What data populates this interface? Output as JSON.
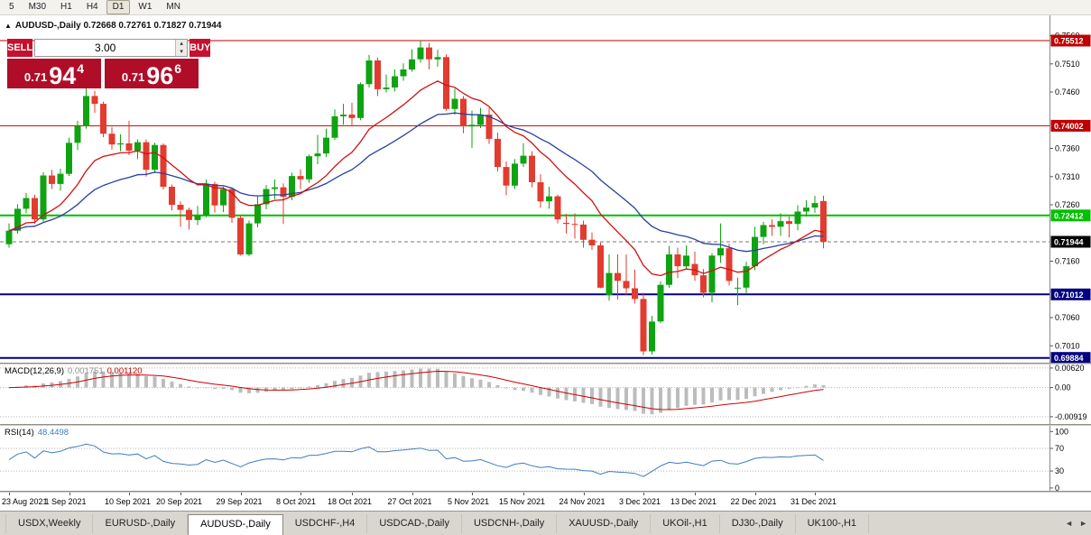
{
  "toolbar": {
    "timeframes": [
      "5",
      "M30",
      "H1",
      "H4",
      "D1",
      "W1",
      "MN"
    ],
    "active": "D1"
  },
  "icons": {
    "collapse": "▲",
    "volume_up": "▴",
    "volume_down": "▾",
    "tab_scroll_left": "◄",
    "tab_scroll_right": "►"
  },
  "chart": {
    "title": {
      "text": "AUDUSD-,Daily 0.72668 0.72761 0.71827 0.71944"
    },
    "trade_panel": {
      "sell_label": "SELL",
      "buy_label": "BUY",
      "volume": "3.00",
      "sell_price": {
        "prefix": "0.71",
        "big": "94",
        "sup": "4"
      },
      "buy_price": {
        "prefix": "0.71",
        "big": "96",
        "sup": "6"
      }
    }
  },
  "tabs": {
    "items": [
      "USDX,Weekly",
      "EURUSD-,Daily",
      "AUDUSD-,Daily",
      "USDCHF-,H4",
      "USDCAD-,Daily",
      "USDCNH-,Daily",
      "XAUUSD-,Daily",
      "UKOil-,H1",
      "DJ30-,Daily",
      "UK100-,H1"
    ],
    "active": "AUDUSD-,Daily"
  },
  "chart_data": {
    "type": "candlestick",
    "symbol": "AUDUSD-",
    "period": "Daily",
    "current_ohlc": {
      "open": 0.72668,
      "high": 0.72761,
      "low": 0.71827,
      "close": 0.71944
    },
    "up_color": "#0fa312",
    "down_color": "#e23b30",
    "candles": [
      [
        0.719,
        0.7227,
        0.7184,
        0.7214
      ],
      [
        0.7214,
        0.7261,
        0.7209,
        0.7253
      ],
      [
        0.7253,
        0.7281,
        0.7245,
        0.7272
      ],
      [
        0.7272,
        0.7278,
        0.7226,
        0.7234
      ],
      [
        0.7234,
        0.7318,
        0.723,
        0.7312
      ],
      [
        0.7312,
        0.7322,
        0.7288,
        0.7297
      ],
      [
        0.7297,
        0.7324,
        0.7285,
        0.7315
      ],
      [
        0.7315,
        0.7379,
        0.7311,
        0.737
      ],
      [
        0.737,
        0.7409,
        0.7357,
        0.74
      ],
      [
        0.74,
        0.7478,
        0.7395,
        0.7453
      ],
      [
        0.7453,
        0.7462,
        0.7423,
        0.7439
      ],
      [
        0.7439,
        0.7443,
        0.738,
        0.7386
      ],
      [
        0.7386,
        0.7398,
        0.7358,
        0.7367
      ],
      [
        0.7367,
        0.7385,
        0.7355,
        0.7369
      ],
      [
        0.7369,
        0.7409,
        0.7348,
        0.7356
      ],
      [
        0.7356,
        0.7376,
        0.7341,
        0.7371
      ],
      [
        0.7371,
        0.7376,
        0.731,
        0.7322
      ],
      [
        0.7322,
        0.737,
        0.7316,
        0.7366
      ],
      [
        0.7366,
        0.7369,
        0.7287,
        0.7292
      ],
      [
        0.7292,
        0.7296,
        0.725,
        0.726
      ],
      [
        0.726,
        0.7266,
        0.7221,
        0.7251
      ],
      [
        0.7251,
        0.7255,
        0.7216,
        0.7233
      ],
      [
        0.7233,
        0.7258,
        0.7224,
        0.7241
      ],
      [
        0.7241,
        0.7305,
        0.7238,
        0.7297
      ],
      [
        0.7297,
        0.7301,
        0.7246,
        0.7259
      ],
      [
        0.7259,
        0.7292,
        0.7247,
        0.7288
      ],
      [
        0.7288,
        0.7291,
        0.7228,
        0.7237
      ],
      [
        0.7237,
        0.7241,
        0.717,
        0.7172
      ],
      [
        0.7172,
        0.7232,
        0.7169,
        0.7227
      ],
      [
        0.7227,
        0.7275,
        0.722,
        0.7261
      ],
      [
        0.7261,
        0.7295,
        0.7252,
        0.7288
      ],
      [
        0.7288,
        0.7305,
        0.727,
        0.7291
      ],
      [
        0.7291,
        0.7298,
        0.7226,
        0.7274
      ],
      [
        0.7274,
        0.7317,
        0.7268,
        0.7311
      ],
      [
        0.7311,
        0.7323,
        0.7288,
        0.7305
      ],
      [
        0.7305,
        0.7349,
        0.7299,
        0.7346
      ],
      [
        0.7346,
        0.7384,
        0.7332,
        0.7351
      ],
      [
        0.7351,
        0.7395,
        0.7345,
        0.7379
      ],
      [
        0.7379,
        0.7429,
        0.7375,
        0.7417
      ],
      [
        0.7417,
        0.7439,
        0.7402,
        0.742
      ],
      [
        0.742,
        0.7441,
        0.74,
        0.7414
      ],
      [
        0.7414,
        0.7477,
        0.741,
        0.7474
      ],
      [
        0.7474,
        0.7526,
        0.7468,
        0.7516
      ],
      [
        0.7516,
        0.7521,
        0.7453,
        0.7465
      ],
      [
        0.7465,
        0.7491,
        0.7459,
        0.7468
      ],
      [
        0.7468,
        0.75,
        0.7461,
        0.7488
      ],
      [
        0.7488,
        0.7511,
        0.748,
        0.75
      ],
      [
        0.75,
        0.7536,
        0.7496,
        0.7518
      ],
      [
        0.7518,
        0.75512,
        0.7512,
        0.7539
      ],
      [
        0.7539,
        0.7547,
        0.75,
        0.7518
      ],
      [
        0.7518,
        0.7535,
        0.7505,
        0.7522
      ],
      [
        0.7522,
        0.7527,
        0.7427,
        0.743
      ],
      [
        0.743,
        0.7466,
        0.742,
        0.7448
      ],
      [
        0.7448,
        0.7453,
        0.7387,
        0.7399
      ],
      [
        0.7399,
        0.7427,
        0.7361,
        0.7402
      ],
      [
        0.7402,
        0.7432,
        0.7396,
        0.742
      ],
      [
        0.742,
        0.7432,
        0.7368,
        0.7377
      ],
      [
        0.7377,
        0.7388,
        0.7319,
        0.7327
      ],
      [
        0.7327,
        0.7337,
        0.7277,
        0.7294
      ],
      [
        0.7294,
        0.7341,
        0.7288,
        0.7333
      ],
      [
        0.7333,
        0.7369,
        0.7327,
        0.7347
      ],
      [
        0.7347,
        0.7355,
        0.7291,
        0.73
      ],
      [
        0.73,
        0.7314,
        0.7255,
        0.7266
      ],
      [
        0.7266,
        0.7292,
        0.7253,
        0.7275
      ],
      [
        0.7275,
        0.7278,
        0.7227,
        0.7234
      ],
      [
        0.7228,
        0.7244,
        0.7209,
        0.7226
      ],
      [
        0.7226,
        0.7245,
        0.72,
        0.7225
      ],
      [
        0.7225,
        0.7232,
        0.7184,
        0.7198
      ],
      [
        0.7198,
        0.7211,
        0.718,
        0.7188
      ],
      [
        0.7188,
        0.7193,
        0.7112,
        0.7113
      ],
      [
        0.71,
        0.7172,
        0.709,
        0.7139
      ],
      [
        0.7139,
        0.7172,
        0.7092,
        0.7125
      ],
      [
        0.7125,
        0.7172,
        0.71,
        0.7112
      ],
      [
        0.7112,
        0.7145,
        0.7085,
        0.7093
      ],
      [
        0.7093,
        0.7104,
        0.69933,
        0.7
      ],
      [
        0.7,
        0.7063,
        0.6994,
        0.7053
      ],
      [
        0.7053,
        0.7124,
        0.705,
        0.7118
      ],
      [
        0.7118,
        0.7187,
        0.7113,
        0.7172
      ],
      [
        0.7172,
        0.7184,
        0.713,
        0.7151
      ],
      [
        0.7151,
        0.7188,
        0.7145,
        0.717
      ],
      [
        0.7155,
        0.7177,
        0.7125,
        0.7135
      ],
      [
        0.7135,
        0.7146,
        0.7096,
        0.7104
      ],
      [
        0.7104,
        0.7174,
        0.7087,
        0.717
      ],
      [
        0.717,
        0.7227,
        0.7157,
        0.7183
      ],
      [
        0.7183,
        0.7191,
        0.7117,
        0.7125
      ],
      [
        0.7112,
        0.7131,
        0.7082,
        0.7113
      ],
      [
        0.7113,
        0.7159,
        0.7103,
        0.7151
      ],
      [
        0.7151,
        0.7221,
        0.7144,
        0.7203
      ],
      [
        0.7203,
        0.723,
        0.719,
        0.7224
      ],
      [
        0.7224,
        0.7234,
        0.7205,
        0.7221
      ],
      [
        0.7221,
        0.7245,
        0.7205,
        0.7231
      ],
      [
        0.7231,
        0.7239,
        0.7202,
        0.7226
      ],
      [
        0.7226,
        0.7259,
        0.7215,
        0.7248
      ],
      [
        0.7248,
        0.7268,
        0.7239,
        0.7255
      ],
      [
        0.7255,
        0.7276,
        0.7246,
        0.7263
      ],
      [
        0.72668,
        0.72761,
        0.71827,
        0.71944
      ]
    ],
    "x_labels": [
      {
        "i": 0,
        "t": "23 Aug 2021"
      },
      {
        "i": 7,
        "t": "1 Sep 2021"
      },
      {
        "i": 14,
        "t": "10 Sep 2021"
      },
      {
        "i": 20,
        "t": "20 Sep 2021"
      },
      {
        "i": 27,
        "t": "29 Sep 2021"
      },
      {
        "i": 34,
        "t": "8 Oct 2021"
      },
      {
        "i": 40,
        "t": "18 Oct 2021"
      },
      {
        "i": 47,
        "t": "27 Oct 2021"
      },
      {
        "i": 54,
        "t": "5 Nov 2021"
      },
      {
        "i": 60,
        "t": "15 Nov 2021"
      },
      {
        "i": 67,
        "t": "24 Nov 2021"
      },
      {
        "i": 74,
        "t": "3 Dec 2021"
      },
      {
        "i": 80,
        "t": "13 Dec 2021"
      },
      {
        "i": 87,
        "t": "22 Dec 2021"
      },
      {
        "i": 94,
        "t": "31 Dec 2021"
      }
    ],
    "price_axis": {
      "min": 0.698,
      "max": 0.7596,
      "ticks": [
        0.756,
        0.751,
        0.746,
        0.736,
        0.731,
        0.726,
        0.716,
        0.706,
        0.701
      ]
    },
    "levels": [
      {
        "value": 0.75512,
        "label": "0.75512",
        "color": "#c00000",
        "width": 1
      },
      {
        "value": 0.74002,
        "label": "0.74002",
        "color": "#c00000",
        "width": 1
      },
      {
        "value": 0.72412,
        "label": "0.72412",
        "color": "#00c000",
        "width": 2
      },
      {
        "value": 0.71012,
        "label": "0.71012",
        "color": "#000080",
        "width": 2
      },
      {
        "value": 0.69884,
        "label": "0.69884",
        "color": "#000080",
        "width": 2
      }
    ],
    "current_price": {
      "value": 0.71944,
      "label": "0.71944",
      "badge_color": "#000000",
      "line_color": "#777777"
    },
    "overlays": [
      {
        "type": "ema",
        "period": 12,
        "color": "#d01010"
      },
      {
        "type": "ema",
        "period": 26,
        "color": "#2b3f9e"
      }
    ],
    "macd": {
      "label": "MACD(12,26,9)",
      "value_main": "0.001751",
      "value_signal": "0.001120",
      "fast": 12,
      "slow": 26,
      "signal": 9,
      "hist_color": "#bcbcbc",
      "signal_color": "#cc0000",
      "axis": {
        "min": -0.0115,
        "max": 0.0073,
        "ticks": [
          {
            "v": 0.0062,
            "t": "0.00620"
          },
          {
            "v": 0,
            "t": "0.00"
          },
          {
            "v": -0.00919,
            "t": "-0.00919"
          }
        ]
      }
    },
    "rsi": {
      "label": "RSI(14)",
      "value": "48.4498",
      "period": 14,
      "color": "#3f7cc1",
      "axis": {
        "min": -5,
        "max": 110,
        "ticks": [
          100,
          70,
          30,
          0
        ],
        "guides": [
          70,
          30
        ]
      }
    }
  }
}
